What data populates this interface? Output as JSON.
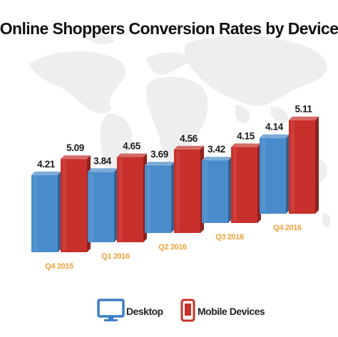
{
  "chart_data": {
    "type": "bar",
    "title": "Online Shoppers Conversion Rates by Device",
    "categories": [
      "Q4 2015",
      "Q1 2016",
      "Q2 2016",
      "Q3 2016",
      "Q4 2016"
    ],
    "series": [
      {
        "name": "Desktop",
        "color": "#4a8ccb",
        "values": [
          4.21,
          3.84,
          3.69,
          3.42,
          4.14
        ]
      },
      {
        "name": "Mobile Devices",
        "color": "#c8302b",
        "values": [
          5.09,
          4.65,
          4.56,
          4.15,
          5.11
        ]
      }
    ],
    "xlabel": "",
    "ylabel": "",
    "grid": false,
    "legend_position": "bottom",
    "category_label_color": "#f0a13a"
  },
  "legend": {
    "desktop_icon": "monitor-icon",
    "mobile_icon": "mobile-phone-icon"
  }
}
